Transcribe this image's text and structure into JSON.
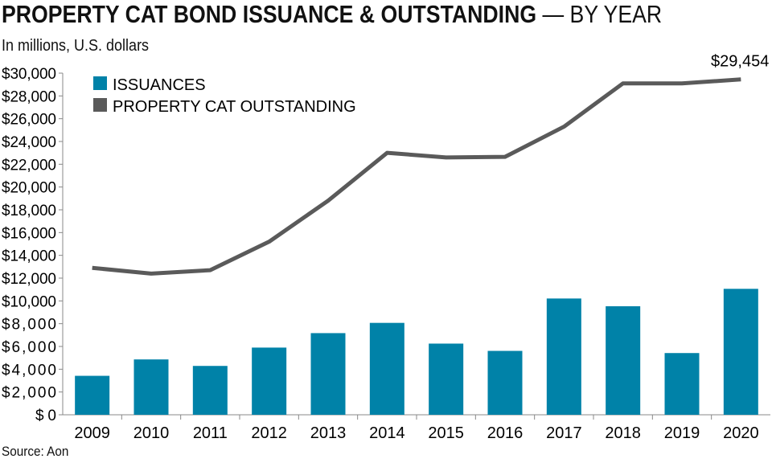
{
  "header": {
    "title": "PROPERTY CAT BOND ISSUANCE & OUTSTANDING",
    "subtitle": "— BY YEAR",
    "units": "In millions, U.S. dollars",
    "source": "Source: Aon"
  },
  "chart_data": {
    "type": "bar+line",
    "categories": [
      "2009",
      "2010",
      "2011",
      "2012",
      "2013",
      "2014",
      "2015",
      "2016",
      "2017",
      "2018",
      "2019",
      "2020"
    ],
    "series": [
      {
        "name": "ISSUANCES",
        "type": "bar",
        "color": "#0082a8",
        "values": [
          3420,
          4860,
          4290,
          5900,
          7170,
          8070,
          6250,
          5610,
          10210,
          9530,
          5420,
          11060
        ]
      },
      {
        "name": "PROPERTY CAT OUTSTANDING",
        "type": "line",
        "color": "#5a5a5a",
        "values": [
          12900,
          12400,
          12700,
          15200,
          18800,
          23000,
          22600,
          22650,
          25300,
          29100,
          29100,
          29454
        ]
      }
    ],
    "annotation": "$29,454",
    "ylim": [
      0,
      30000
    ],
    "yticks": [
      "$0",
      "$2,000",
      "$4,000",
      "$6,000",
      "$8,000",
      "$10,000",
      "$12,000",
      "$14,000",
      "$16,000",
      "$18,000",
      "$20,000",
      "$22,000",
      "$24,000",
      "$26,000",
      "$28,000",
      "$30,000"
    ],
    "grid": false,
    "legend": "top-left"
  }
}
